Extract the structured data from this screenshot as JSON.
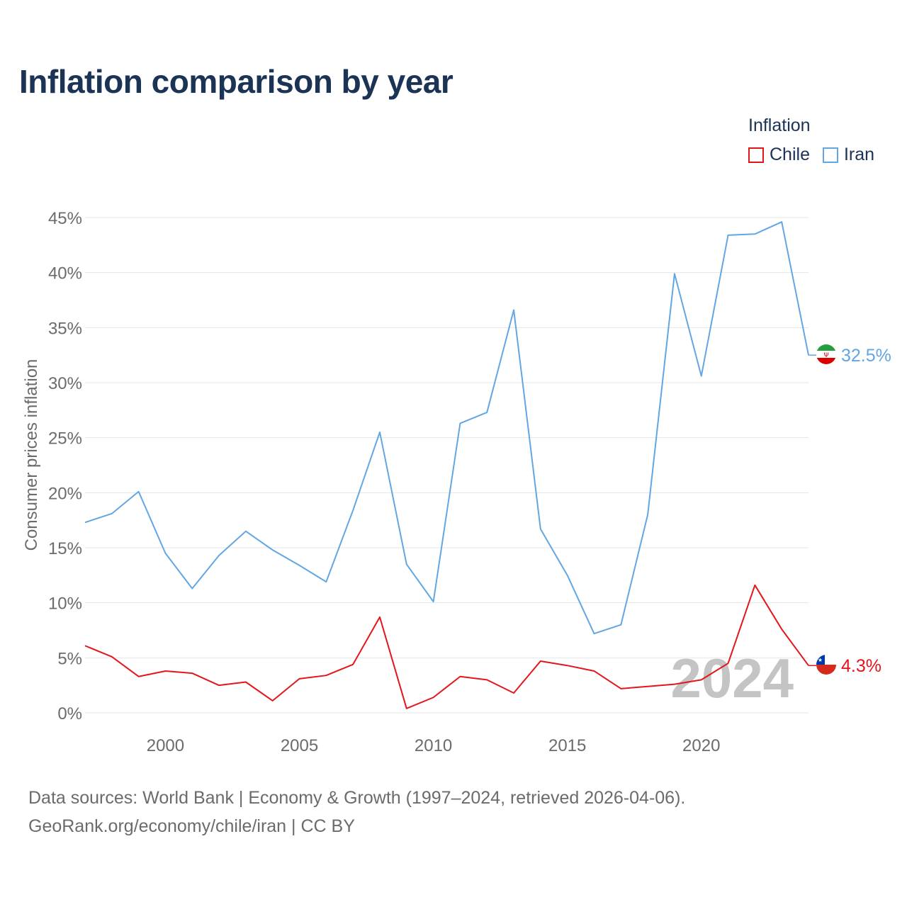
{
  "header": {
    "title": "Inflation comparison by year"
  },
  "legend": {
    "title": "Inflation",
    "items": [
      {
        "label": "Chile",
        "color": "#e3161b"
      },
      {
        "label": "Iran",
        "color": "#62a6e3"
      }
    ]
  },
  "footer": {
    "line1": "Data sources: World Bank | Economy & Growth (1997–2024, retrieved 2026-04-06).",
    "line2": "GeoRank.org/economy/chile/iran | CC BY"
  },
  "chart_data": {
    "type": "line",
    "title": "Inflation comparison by year",
    "xlabel": "",
    "ylabel": "Consumer prices inflation",
    "xlim": [
      1997,
      2024
    ],
    "ylim": [
      0,
      45
    ],
    "xticks": [
      2000,
      2005,
      2010,
      2015,
      2020
    ],
    "yticks": [
      0,
      5,
      10,
      15,
      20,
      25,
      30,
      35,
      40,
      45
    ],
    "ytick_labels": [
      "0%",
      "5%",
      "10%",
      "15%",
      "20%",
      "25%",
      "30%",
      "35%",
      "40%",
      "45%"
    ],
    "grid": true,
    "watermark": "2024",
    "x": [
      1997,
      1998,
      1999,
      2000,
      2001,
      2002,
      2003,
      2004,
      2005,
      2006,
      2007,
      2008,
      2009,
      2010,
      2011,
      2012,
      2013,
      2014,
      2015,
      2016,
      2017,
      2018,
      2019,
      2020,
      2021,
      2022,
      2023,
      2024
    ],
    "series": [
      {
        "name": "Iran",
        "color": "#62a6e3",
        "end_label": "32.5%",
        "values": [
          17.3,
          18.1,
          20.1,
          14.5,
          11.3,
          14.3,
          16.5,
          14.8,
          13.4,
          11.9,
          18.4,
          25.5,
          13.5,
          10.1,
          26.3,
          27.3,
          36.6,
          16.7,
          12.5,
          7.2,
          8.0,
          18.0,
          39.9,
          30.6,
          43.4,
          43.5,
          44.6,
          32.5
        ]
      },
      {
        "name": "Chile",
        "color": "#e3161b",
        "end_label": "4.3%",
        "values": [
          6.1,
          5.1,
          3.3,
          3.8,
          3.6,
          2.5,
          2.8,
          1.1,
          3.1,
          3.4,
          4.4,
          8.7,
          0.4,
          1.4,
          3.3,
          3.0,
          1.8,
          4.7,
          4.3,
          3.8,
          2.2,
          2.4,
          2.6,
          3.0,
          4.5,
          11.6,
          7.6,
          4.3
        ]
      }
    ]
  }
}
